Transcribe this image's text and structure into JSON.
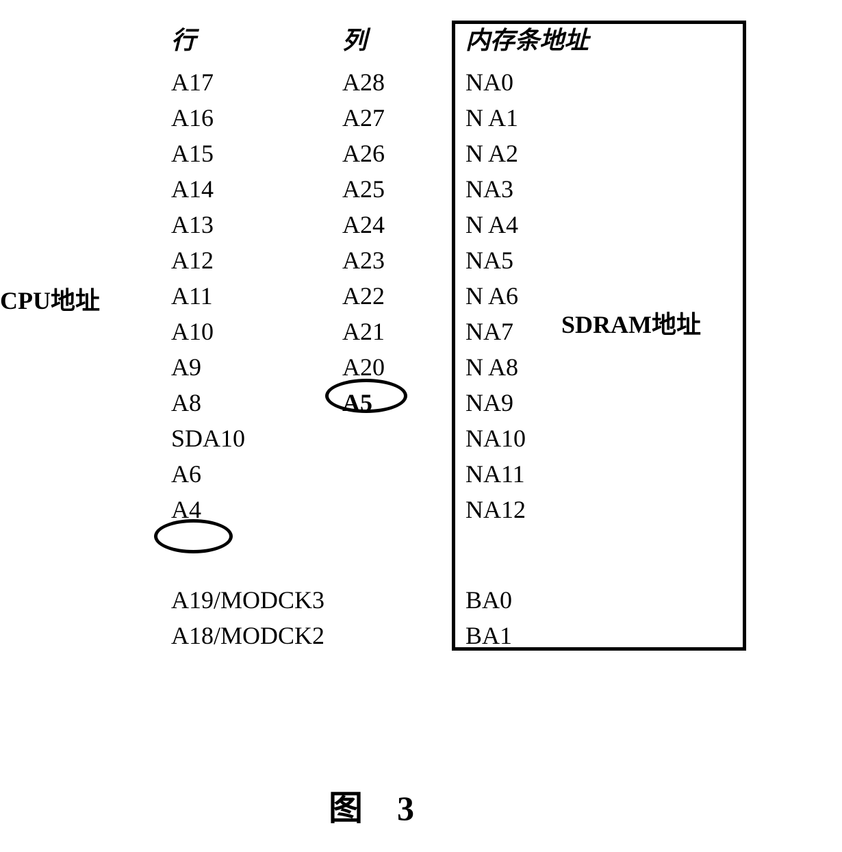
{
  "labels": {
    "cpu": "CPU地址",
    "sdram": "SDRAM地址",
    "row_header": "行",
    "col_header": "列",
    "mem_header": "内存条地址",
    "figure": "图　3"
  },
  "row_values": [
    "A17",
    "A16",
    "A15",
    "A14",
    "A13",
    "A12",
    "A11",
    "A10",
    "A9",
    "A8",
    "SDA10",
    "A6",
    "A4"
  ],
  "col_values": [
    "A28",
    "A27",
    "A26",
    "A25",
    "A24",
    "A23",
    "A22",
    "A21",
    "A20",
    "A5"
  ],
  "mem_values": [
    "NA0",
    "N A1",
    "N A2",
    "NA3",
    "N A4",
    "NA5",
    "N A6",
    "NA7",
    "N A8",
    "NA9",
    "NA10",
    "NA11",
    "NA12"
  ],
  "bottom_row_values": [
    "A19/MODCK3",
    "A18/MODCK2"
  ],
  "bottom_mem_values": [
    "BA0",
    "BA1"
  ],
  "circled": {
    "a4": "A4",
    "a5": "A5"
  },
  "style": {
    "font_family": "Times New Roman",
    "font_size_cell": 36,
    "font_size_figure": 50,
    "border_color": "#000000",
    "border_width": 5,
    "background": "#ffffff",
    "text_color": "#000000",
    "ellipse_border_width": 5
  }
}
